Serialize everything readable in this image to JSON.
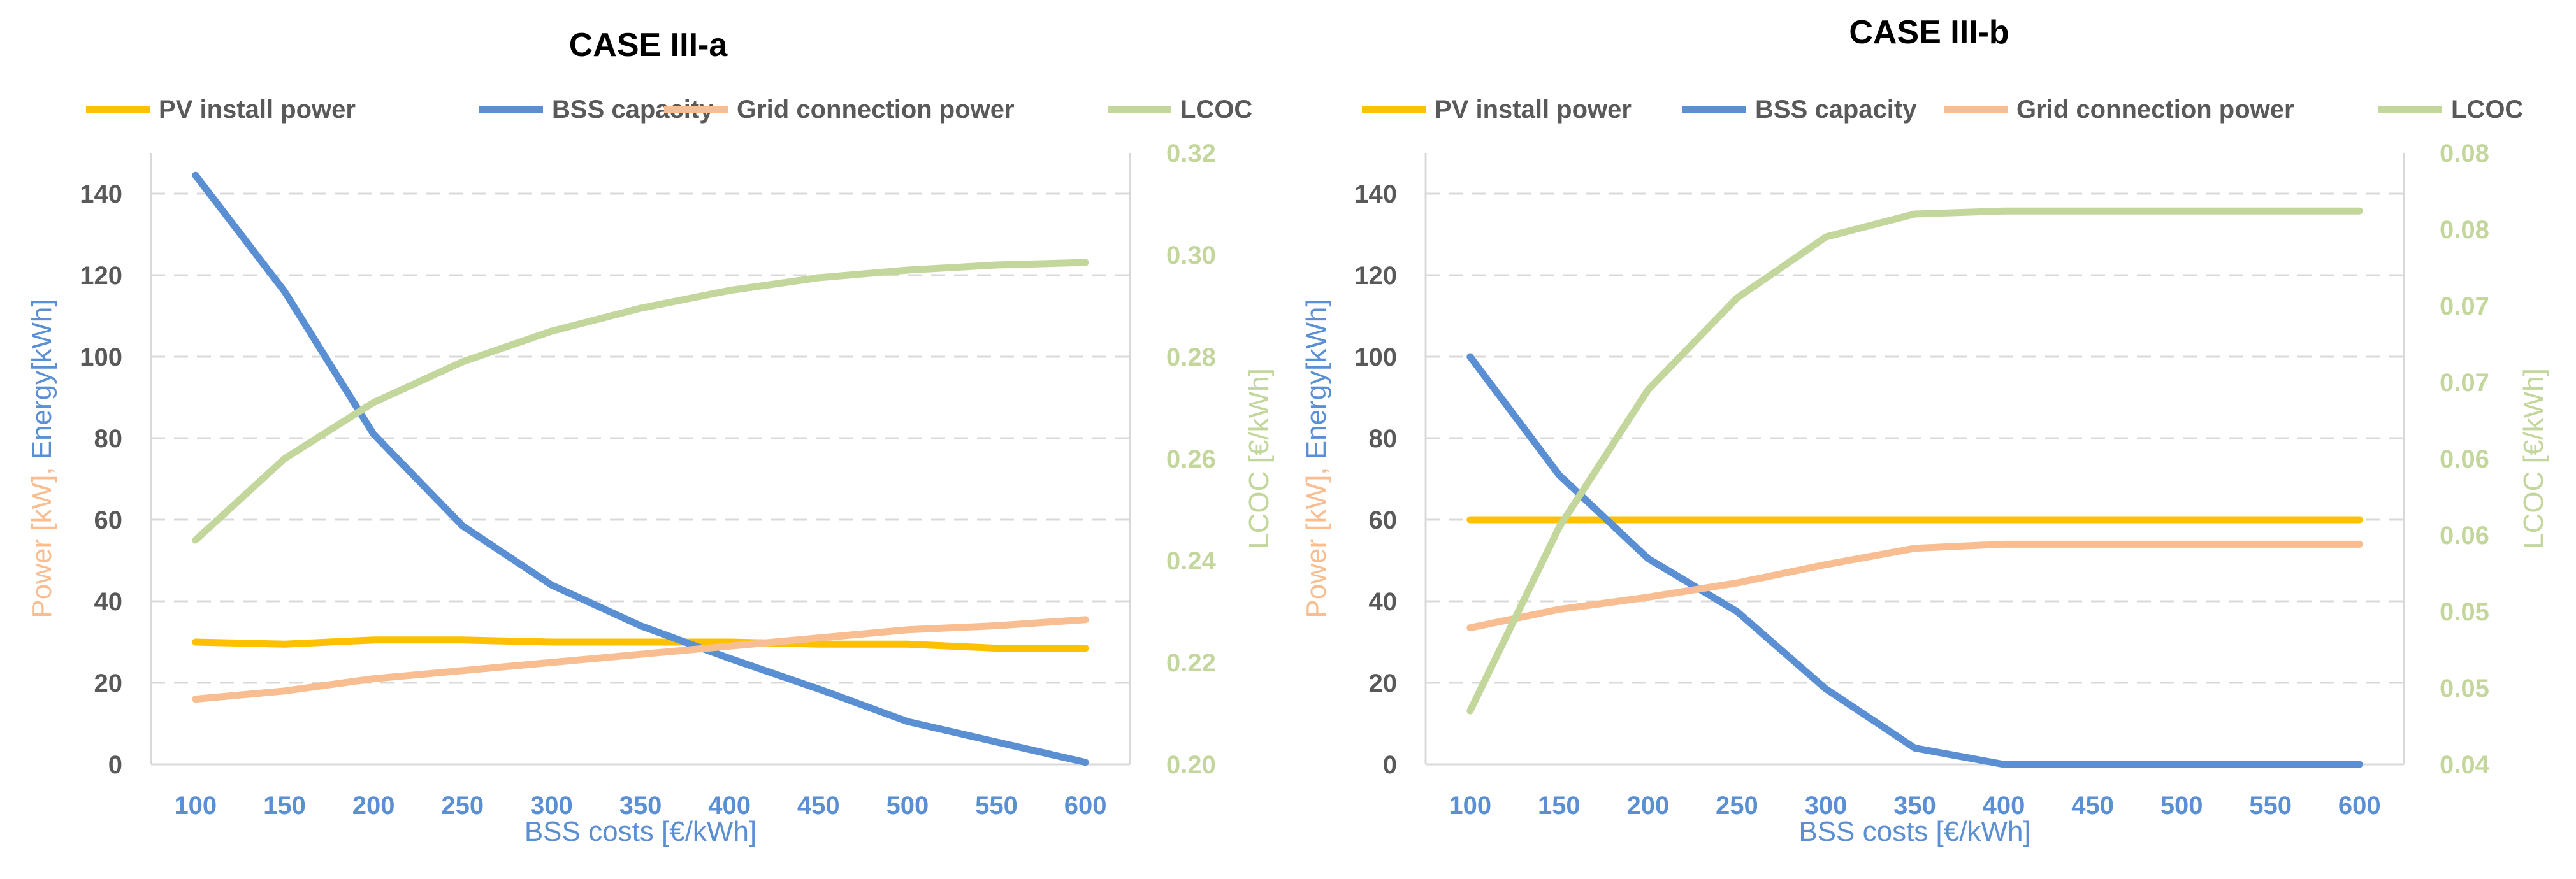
{
  "chart_data": [
    {
      "type": "line",
      "title": "CASE III-a",
      "xlabel": "BSS costs [€/kWh]",
      "ylabel_parts": [
        {
          "text": "Power [kW], ",
          "color": "#f8be91"
        },
        {
          "text": "Energy[kWh]",
          "color": "#5b8fd4"
        }
      ],
      "y2label": "LCOC [€/kWh]",
      "x": [
        100,
        150,
        200,
        250,
        300,
        350,
        400,
        450,
        500,
        550,
        600
      ],
      "ylim": [
        0,
        150
      ],
      "yticks": [
        0,
        20,
        40,
        60,
        80,
        100,
        120,
        140
      ],
      "y2lim": [
        0.2,
        0.32
      ],
      "y2ticks": [
        0.2,
        0.22,
        0.24,
        0.26,
        0.28,
        0.3,
        0.32
      ],
      "y2tick_labels": [
        "0.20",
        "0.22",
        "0.24",
        "0.26",
        "0.28",
        "0.30",
        "0.32"
      ],
      "grid": true,
      "legend": "top",
      "series": [
        {
          "name": "PV install power",
          "axis": "left",
          "color": "#ffc000",
          "values": [
            30,
            29.5,
            30.5,
            30.5,
            30,
            30,
            30,
            29.5,
            29.5,
            28.5,
            28.5
          ]
        },
        {
          "name": "BSS capacity",
          "axis": "left",
          "color": "#5b8fd4",
          "values": [
            144.5,
            116,
            81,
            58.5,
            44,
            34,
            26,
            18.5,
            10.5,
            5.5,
            0.5
          ]
        },
        {
          "name": "Grid connection power",
          "axis": "left",
          "color": "#f8be91",
          "values": [
            16,
            18,
            21,
            23,
            25,
            27,
            29,
            31,
            33,
            34,
            35.5
          ]
        },
        {
          "name": "LCOC",
          "axis": "right",
          "color": "#c3d69b",
          "values": [
            0.244,
            0.26,
            0.271,
            0.279,
            0.285,
            0.2895,
            0.293,
            0.2955,
            0.297,
            0.298,
            0.2985
          ]
        }
      ]
    },
    {
      "type": "line",
      "title": "CASE III-b",
      "xlabel": "BSS costs [€/kWh]",
      "ylabel_parts": [
        {
          "text": "Power [kW], ",
          "color": "#f8be91"
        },
        {
          "text": "Energy[kWh]",
          "color": "#5b8fd4"
        }
      ],
      "y2label": "LCOC [€/kWh]",
      "x": [
        100,
        150,
        200,
        250,
        300,
        350,
        400,
        450,
        500,
        550,
        600
      ],
      "ylim": [
        0,
        150
      ],
      "yticks": [
        0,
        20,
        40,
        60,
        80,
        100,
        120,
        140
      ],
      "y2lim": [
        0.04,
        0.08
      ],
      "y2ticks": [
        0.04,
        0.045,
        0.05,
        0.055,
        0.06,
        0.065,
        0.07,
        0.075,
        0.08
      ],
      "y2tick_labels": [
        "0.04",
        "0.05",
        "0.05",
        "0.06",
        "0.06",
        "0.07",
        "0.07",
        "0.08",
        "0.08"
      ],
      "grid": true,
      "legend": "top",
      "series": [
        {
          "name": "PV install power",
          "axis": "left",
          "color": "#ffc000",
          "values": [
            60,
            60,
            60,
            60,
            60,
            60,
            60,
            60,
            60,
            60,
            60
          ]
        },
        {
          "name": "BSS capacity",
          "axis": "left",
          "color": "#5b8fd4",
          "values": [
            100,
            71,
            50.5,
            37.5,
            18.5,
            4,
            0,
            0,
            0,
            0,
            0
          ]
        },
        {
          "name": "Grid connection power",
          "axis": "left",
          "color": "#f8be91",
          "values": [
            33.5,
            38,
            41,
            44.5,
            49,
            53,
            54,
            54,
            54,
            54,
            54
          ]
        },
        {
          "name": "LCOC",
          "axis": "right",
          "color": "#c3d69b",
          "values": [
            0.0435,
            0.0555,
            0.0645,
            0.0705,
            0.0745,
            0.076,
            0.0762,
            0.0762,
            0.0762,
            0.0762,
            0.0762
          ]
        }
      ]
    }
  ]
}
